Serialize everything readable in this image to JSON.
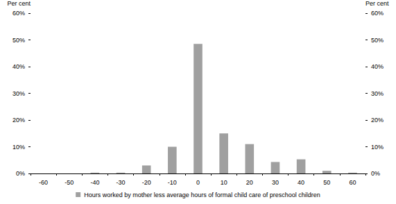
{
  "chart_data": {
    "type": "bar",
    "categories": [
      "-60",
      "-50",
      "-40",
      "-30",
      "-20",
      "-10",
      "0",
      "10",
      "20",
      "30",
      "40",
      "50",
      "60"
    ],
    "series": [
      {
        "name": "Hours worked by mother less average hours of formal child care of preschool children",
        "color": "#a0a0a0",
        "values": [
          0,
          0,
          0.3,
          0.3,
          3,
          10,
          48.5,
          15,
          11,
          4.3,
          5.3,
          1,
          0.3
        ]
      }
    ],
    "ylabel": "Per cent",
    "y2label": "Per cent",
    "ylim": [
      0,
      60
    ],
    "yticks": [
      {
        "value": 0,
        "label": "0%"
      },
      {
        "value": 10,
        "label": "10%"
      },
      {
        "value": 20,
        "label": "20%"
      },
      {
        "value": 30,
        "label": "30%"
      },
      {
        "value": 40,
        "label": "40%"
      },
      {
        "value": 50,
        "label": "50%"
      },
      {
        "value": 60,
        "label": "60%"
      }
    ],
    "y2lim": [
      0,
      60
    ],
    "y2ticks": [
      {
        "value": 0,
        "label": "0%"
      },
      {
        "value": 10,
        "label": "10%"
      },
      {
        "value": 20,
        "label": "20%"
      },
      {
        "value": 30,
        "label": "30%"
      },
      {
        "value": 40,
        "label": "40%"
      },
      {
        "value": 50,
        "label": "50%"
      },
      {
        "value": 60,
        "label": "60%"
      }
    ],
    "grid": false,
    "legend": "bottom"
  }
}
